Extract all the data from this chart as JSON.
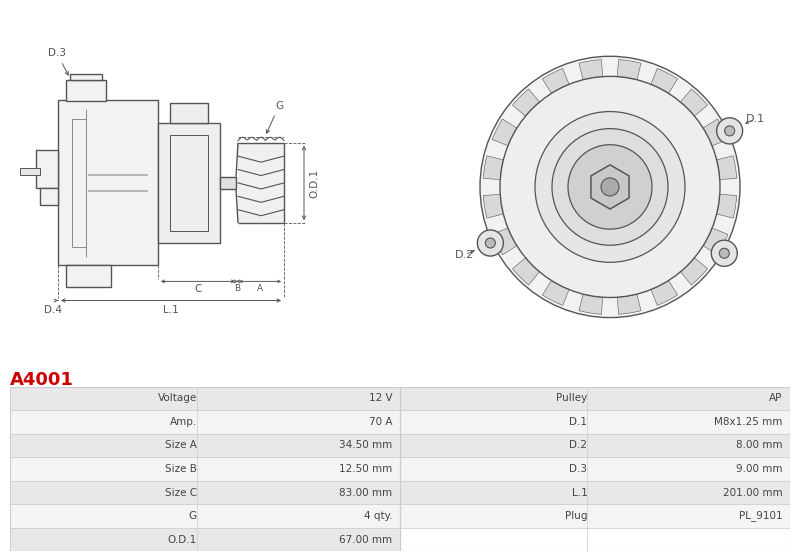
{
  "title": "A4001",
  "title_color": "#cc0000",
  "background_color": "#ffffff",
  "table_rows": [
    [
      "Voltage",
      "12 V",
      "Pulley",
      "AP"
    ],
    [
      "Amp.",
      "70 A",
      "D.1",
      "M8x1.25 mm"
    ],
    [
      "Size A",
      "34.50 mm",
      "D.2",
      "8.00 mm"
    ],
    [
      "Size B",
      "12.50 mm",
      "D.3",
      "9.00 mm"
    ],
    [
      "Size C",
      "83.00 mm",
      "L.1",
      "201.00 mm"
    ],
    [
      "G",
      "4 qty.",
      "Plug",
      "PL_9101"
    ],
    [
      "O.D.1",
      "67.00 mm",
      "",
      ""
    ]
  ],
  "row_bg_even": "#e8e8e8",
  "row_bg_odd": "#f4f4f4",
  "border_color": "#cccccc",
  "text_color": "#444444",
  "line_color": "#555555",
  "dim_color": "#555555"
}
